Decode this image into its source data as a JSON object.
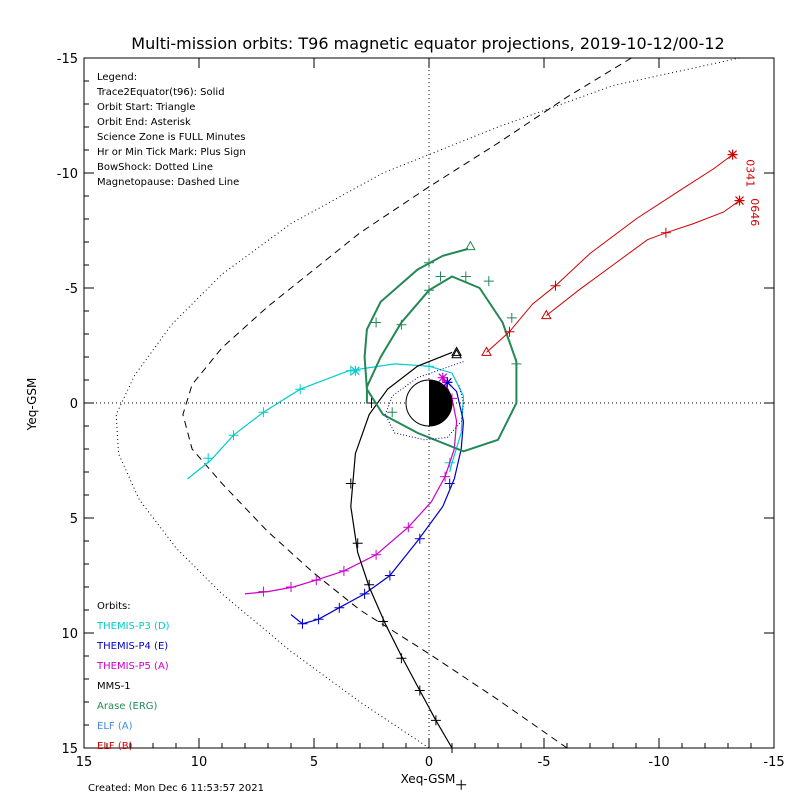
{
  "chart_data": {
    "type": "line",
    "title": "Multi-mission orbits: T96 magnetic equator projections, 2019-10-12/00-12",
    "xlabel": "Xeq-GSM",
    "ylabel": "Yeq-GSM",
    "xlim": [
      15,
      -15
    ],
    "ylim": [
      -15,
      15
    ],
    "xticks": [
      15,
      10,
      5,
      0,
      -5,
      -10,
      -15
    ],
    "yticks": [
      -15,
      -10,
      -5,
      0,
      5,
      10,
      15
    ],
    "xtick_labels": [
      "15",
      "10",
      "5",
      "0",
      "-5",
      "-10",
      "-15"
    ],
    "ytick_labels": [
      "-15",
      "-10",
      "-5",
      "0",
      "5",
      "10",
      "15"
    ],
    "legend_lines": [
      "Legend:",
      "Trace2Equator(t96): Solid",
      "Orbit Start: Triangle",
      "Orbit End: Asterisk",
      "Science Zone is FULL Minutes",
      "Hr or Min Tick Mark: Plus Sign",
      "BowShock: Dotted Line",
      "Magnetopause: Dashed Line"
    ],
    "orbits_header": "Orbits:",
    "orbit_labels": [
      {
        "name": "THEMIS-P3 (D)",
        "color": "#00cccc"
      },
      {
        "name": "THEMIS-P4 (E)",
        "color": "#0000cc"
      },
      {
        "name": "THEMIS-P5 (A)",
        "color": "#cc00cc"
      },
      {
        "name": "MMS-1",
        "color": "#000000"
      },
      {
        "name": "Arase (ERG)",
        "color": "#228855"
      },
      {
        "name": "ELF (A)",
        "color": "#4488dd"
      },
      {
        "name": "ELF (B)",
        "color": "#d00000"
      }
    ],
    "created": "Created: Mon Dec  6 11:53:57 2021",
    "probe_labels": [
      {
        "text": "0341",
        "x": -13.8,
        "y": -10.6
      },
      {
        "text": "0646",
        "x": -14.0,
        "y": -8.9
      }
    ],
    "magnetopause": [
      [
        -8.8,
        -15
      ],
      [
        -6,
        -13.3
      ],
      [
        -3,
        -11.3
      ],
      [
        0,
        -9.4
      ],
      [
        3,
        -7.4
      ],
      [
        5,
        -5.8
      ],
      [
        7,
        -4.2
      ],
      [
        9,
        -2.4
      ],
      [
        10.3,
        -0.8
      ],
      [
        10.7,
        0.5
      ],
      [
        10.3,
        2
      ],
      [
        9,
        3.5
      ],
      [
        7,
        5.6
      ],
      [
        5,
        7.4
      ],
      [
        3,
        9
      ],
      [
        0,
        10.9
      ],
      [
        -3,
        12.9
      ],
      [
        -6,
        15
      ]
    ],
    "bowshock": [
      [
        -13.5,
        -15
      ],
      [
        -8,
        -13.8
      ],
      [
        -3,
        -12
      ],
      [
        2,
        -10
      ],
      [
        6,
        -7.8
      ],
      [
        9,
        -5.6
      ],
      [
        11.2,
        -3.4
      ],
      [
        12.8,
        -1.2
      ],
      [
        13.6,
        0.5
      ],
      [
        13.5,
        2.2
      ],
      [
        12.6,
        4.2
      ],
      [
        11,
        6.3
      ],
      [
        9,
        8.3
      ],
      [
        6,
        10.8
      ],
      [
        3,
        13
      ],
      [
        0,
        15
      ]
    ],
    "series": [
      {
        "name": "THEMIS-P3 (D)",
        "color": "#00cccc",
        "values": [
          [
            10.5,
            3.3
          ],
          [
            9.5,
            2.5
          ],
          [
            8.5,
            1.4
          ],
          [
            7.2,
            0.4
          ],
          [
            5.6,
            -0.6
          ],
          [
            3.5,
            -1.4
          ],
          [
            1.5,
            -1.7
          ],
          [
            0,
            -1.6
          ],
          [
            -1,
            -1.3
          ],
          [
            -1.5,
            -0.3
          ],
          [
            -1.4,
            1.3
          ],
          [
            -1,
            2.6
          ],
          [
            -0.9,
            3.0
          ]
        ],
        "ticks": [
          [
            9.6,
            2.4
          ],
          [
            8.5,
            1.4
          ],
          [
            7.2,
            0.4
          ],
          [
            5.6,
            -0.6
          ],
          [
            3.4,
            -1.4
          ],
          [
            0,
            -1.6
          ],
          [
            -0.9,
            2.6
          ]
        ],
        "end": [
          3.2,
          -1.4
        ]
      },
      {
        "name": "THEMIS-P4 (E)",
        "color": "#0000cc",
        "values": [
          [
            6,
            9.2
          ],
          [
            5.5,
            9.6
          ],
          [
            4.8,
            9.4
          ],
          [
            3.9,
            8.9
          ],
          [
            2.8,
            8.3
          ],
          [
            1.7,
            7.5
          ],
          [
            0.5,
            6.0
          ],
          [
            -0.6,
            4.5
          ],
          [
            -1.1,
            3.3
          ],
          [
            -1.4,
            2
          ],
          [
            -1.5,
            0.8
          ],
          [
            -1.2,
            -0.5
          ],
          [
            -0.8,
            -0.9
          ]
        ],
        "ticks": [
          [
            5.5,
            9.6
          ],
          [
            4.8,
            9.4
          ],
          [
            3.9,
            8.9
          ],
          [
            2.8,
            8.3
          ],
          [
            1.7,
            7.5
          ],
          [
            0.4,
            5.9
          ],
          [
            -0.9,
            3.5
          ],
          [
            -0.8,
            -0.9
          ]
        ],
        "end": [
          -0.8,
          -0.9
        ]
      },
      {
        "name": "THEMIS-P5 (A)",
        "color": "#cc00cc",
        "values": [
          [
            8,
            8.3
          ],
          [
            7,
            8.2
          ],
          [
            5.9,
            8.0
          ],
          [
            4.9,
            7.7
          ],
          [
            3.7,
            7.3
          ],
          [
            2.3,
            6.6
          ],
          [
            0.9,
            5.4
          ],
          [
            -0.1,
            4.3
          ],
          [
            -0.7,
            3.2
          ],
          [
            -1.1,
            2
          ],
          [
            -1.2,
            0.8
          ],
          [
            -1,
            -0.2
          ],
          [
            -0.6,
            -1.1
          ]
        ],
        "ticks": [
          [
            7.2,
            8.2
          ],
          [
            6,
            8.0
          ],
          [
            4.9,
            7.7
          ],
          [
            3.7,
            7.3
          ],
          [
            2.3,
            6.6
          ],
          [
            0.9,
            5.4
          ],
          [
            -0.7,
            3.2
          ],
          [
            -1,
            -0.2
          ]
        ],
        "end": [
          -0.6,
          -1.1
        ]
      },
      {
        "name": "MMS-1",
        "color": "#000000",
        "values": [
          [
            -1.0,
            -2.2
          ],
          [
            0.5,
            -1.6
          ],
          [
            1.8,
            -0.6
          ],
          [
            2.6,
            0.5
          ],
          [
            3.2,
            2.2
          ],
          [
            3.4,
            4.5
          ],
          [
            3.1,
            6.5
          ],
          [
            2.6,
            8
          ],
          [
            1.9,
            9.6
          ],
          [
            1.2,
            11
          ],
          [
            0.4,
            12.5
          ],
          [
            -0.3,
            13.8
          ],
          [
            -1.0,
            15
          ]
        ],
        "ticks": [
          [
            2.5,
            0
          ],
          [
            3.4,
            3.5
          ],
          [
            3.1,
            6.1
          ],
          [
            2.6,
            7.9
          ],
          [
            2,
            9.5
          ],
          [
            1.2,
            11.1
          ],
          [
            0.4,
            12.5
          ],
          [
            -0.3,
            13.8
          ],
          [
            -1,
            15
          ],
          [
            -1.4,
            16.6
          ]
        ],
        "start": [
          -1.2,
          -2.2
        ]
      },
      {
        "name": "Arase (ERG)",
        "color": "#228855",
        "values": [
          [
            -1.7,
            -6.7
          ],
          [
            -0.6,
            -6.4
          ],
          [
            0.5,
            -5.8
          ],
          [
            2.1,
            -4.4
          ],
          [
            2.7,
            -3.2
          ],
          [
            2.8,
            -2.0
          ],
          [
            2.7,
            -0.6
          ],
          [
            2,
            0.5
          ],
          [
            0.5,
            1.3
          ],
          [
            -1.5,
            2.1
          ],
          [
            -3,
            1.6
          ],
          [
            -3.8,
            0
          ],
          [
            -3.8,
            -1.8
          ],
          [
            -3.2,
            -3.5
          ],
          [
            -2.2,
            -5.0
          ],
          [
            -1,
            -5.5
          ],
          [
            0,
            -4.9
          ],
          [
            1.2,
            -3.5
          ],
          [
            2.1,
            -2
          ],
          [
            2.7,
            -0.7
          ],
          [
            2.7,
            0
          ]
        ],
        "ticks": [
          [
            0,
            -6.1
          ],
          [
            2.3,
            -3.5
          ],
          [
            -3.8,
            -1.7
          ],
          [
            -3.6,
            -3.7
          ],
          [
            -2.6,
            -5.3
          ],
          [
            -1.6,
            -5.5
          ],
          [
            -0.5,
            -5.5
          ],
          [
            0,
            -4.9
          ],
          [
            1.2,
            -3.4
          ],
          [
            1.6,
            0.4
          ]
        ],
        "start": [
          -1.8,
          -6.8
        ]
      },
      {
        "name": "ELF (A)",
        "color": "#4488dd",
        "values": [],
        "ticks": []
      },
      {
        "name": "ELF (B)",
        "color": "#d00000",
        "values": [],
        "ticks": []
      }
    ],
    "elf_tracks": [
      {
        "name": "ELF (B) 0341",
        "color": "#d00000",
        "values": [
          [
            -2.5,
            -2.2
          ],
          [
            -3.5,
            -3.1
          ],
          [
            -4.5,
            -4.3
          ],
          [
            -5.5,
            -5.1
          ],
          [
            -7,
            -6.5
          ],
          [
            -9,
            -8.0
          ],
          [
            -11,
            -9.3
          ],
          [
            -12.4,
            -10.2
          ],
          [
            -13.2,
            -10.8
          ]
        ],
        "ticks": [
          [
            -3.5,
            -3.1
          ],
          [
            -5.5,
            -5.1
          ]
        ],
        "start": [
          -2.5,
          -2.2
        ],
        "end": [
          -13.2,
          -10.8
        ]
      },
      {
        "name": "ELF (B) 0646",
        "color": "#d00000",
        "values": [
          [
            -5.1,
            -3.8
          ],
          [
            -6.5,
            -4.9
          ],
          [
            -8,
            -6.0
          ],
          [
            -9.5,
            -7.1
          ],
          [
            -10.3,
            -7.4
          ],
          [
            -11.5,
            -7.8
          ],
          [
            -12.8,
            -8.3
          ],
          [
            -13.5,
            -8.8
          ]
        ],
        "ticks": [
          [
            -10.3,
            -7.4
          ]
        ],
        "start": [
          -5.1,
          -3.8
        ],
        "end": [
          -13.5,
          -8.8
        ]
      }
    ],
    "black_orbit": [
      [
        -1.5,
        -1.8
      ],
      [
        0.5,
        -1.1
      ],
      [
        1.6,
        -0.3
      ],
      [
        1.9,
        0.5
      ],
      [
        1.5,
        1.3
      ],
      [
        0.2,
        1.6
      ],
      [
        -0.8,
        1.5
      ],
      [
        -1.4,
        0.8
      ],
      [
        -1.5,
        0
      ],
      [
        -1.3,
        -0.8
      ]
    ],
    "black_orbit_start": [
      -1.2,
      -2.1
    ],
    "earth": {
      "radius": 1
    }
  }
}
